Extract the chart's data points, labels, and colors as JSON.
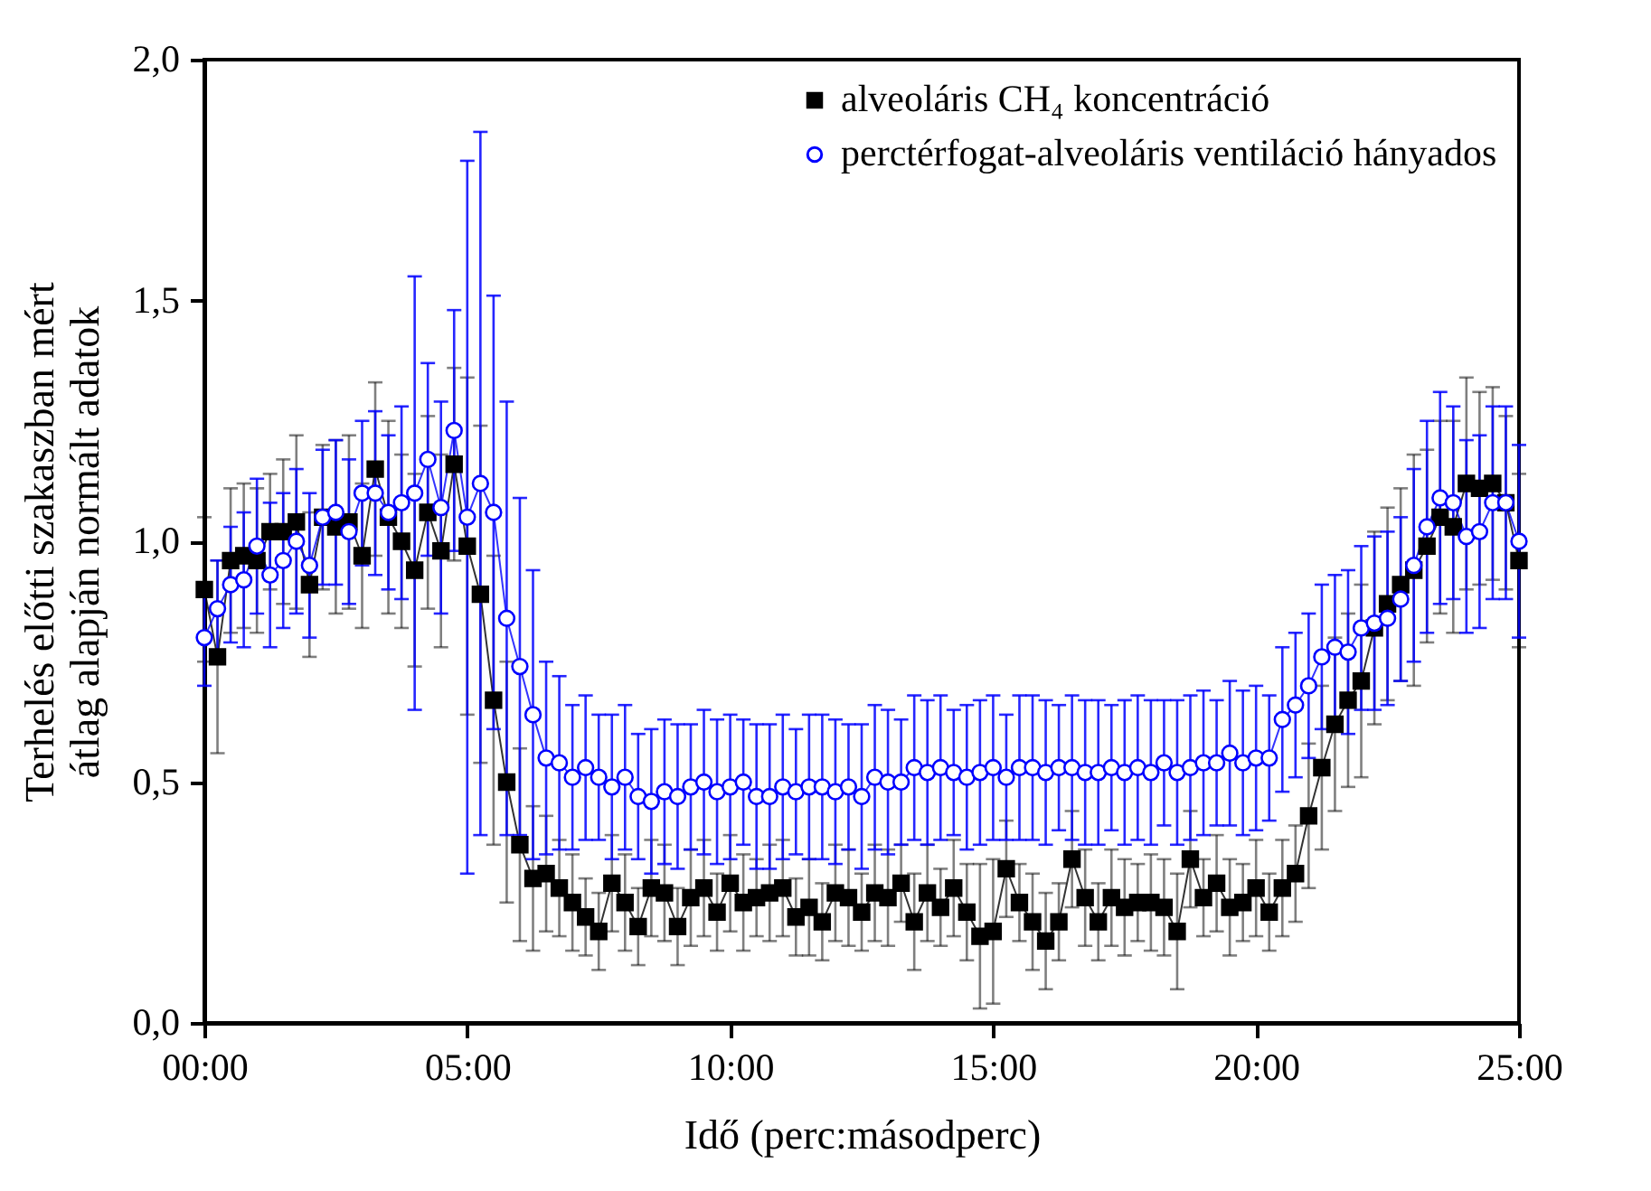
{
  "chart_data": {
    "type": "line",
    "xlabel": "Idő (perc:másodperc)",
    "ylabel": "Terhelés előtti szakaszban mért átlag alapján normált adatok",
    "xlim": [
      0,
      25
    ],
    "xticks": [
      {
        "value": 0,
        "label": "00:00"
      },
      {
        "value": 5,
        "label": "05:00"
      },
      {
        "value": 10,
        "label": "10:00"
      },
      {
        "value": 15,
        "label": "15:00"
      },
      {
        "value": 20,
        "label": "20:00"
      },
      {
        "value": 25,
        "label": "25:00"
      }
    ],
    "ylim": [
      0,
      2
    ],
    "yticks": [
      {
        "value": 0,
        "label": "0,0"
      },
      {
        "value": 0.5,
        "label": "0,5"
      },
      {
        "value": 1,
        "label": "1,0"
      },
      {
        "value": 1.5,
        "label": "1,5"
      },
      {
        "value": 2,
        "label": "2,0"
      }
    ],
    "x": [
      0,
      0.25,
      0.5,
      0.75,
      1,
      1.25,
      1.5,
      1.75,
      2,
      2.25,
      2.5,
      2.75,
      3,
      3.25,
      3.5,
      3.75,
      4,
      4.25,
      4.5,
      4.75,
      5,
      5.25,
      5.5,
      5.75,
      6,
      6.25,
      6.5,
      6.75,
      7,
      7.25,
      7.5,
      7.75,
      8,
      8.25,
      8.5,
      8.75,
      9,
      9.25,
      9.5,
      9.75,
      10,
      10.25,
      10.5,
      10.75,
      11,
      11.25,
      11.5,
      11.75,
      12,
      12.25,
      12.5,
      12.75,
      13,
      13.25,
      13.5,
      13.75,
      14,
      14.25,
      14.5,
      14.75,
      15,
      15.25,
      15.5,
      15.75,
      16,
      16.25,
      16.5,
      16.75,
      17,
      17.25,
      17.5,
      17.75,
      18,
      18.25,
      18.5,
      18.75,
      19,
      19.25,
      19.5,
      19.75,
      20,
      20.25,
      20.5,
      20.75,
      21,
      21.25,
      21.5,
      21.75,
      22,
      22.25,
      22.5,
      22.75,
      23,
      23.25,
      23.5,
      23.75,
      24,
      24.25,
      24.5,
      24.75,
      25
    ],
    "grid": false,
    "legend": "top right",
    "line_style": "solid",
    "series": [
      {
        "name": "alveoláris CH₄ koncentráció",
        "color": "#000000",
        "marker": "square",
        "values": [
          0.9,
          0.76,
          0.96,
          0.97,
          0.96,
          1.02,
          1.02,
          1.04,
          0.91,
          1.05,
          1.03,
          1.04,
          0.97,
          1.15,
          1.05,
          1.0,
          0.94,
          1.06,
          0.98,
          1.16,
          0.99,
          0.89,
          0.67,
          0.5,
          0.37,
          0.3,
          0.31,
          0.28,
          0.25,
          0.22,
          0.19,
          0.29,
          0.25,
          0.2,
          0.28,
          0.27,
          0.2,
          0.26,
          0.28,
          0.23,
          0.29,
          0.25,
          0.26,
          0.27,
          0.28,
          0.22,
          0.24,
          0.21,
          0.27,
          0.26,
          0.23,
          0.27,
          0.26,
          0.29,
          0.21,
          0.27,
          0.24,
          0.28,
          0.23,
          0.18,
          0.19,
          0.32,
          0.25,
          0.21,
          0.17,
          0.21,
          0.34,
          0.26,
          0.21,
          0.26,
          0.24,
          0.25,
          0.25,
          0.24,
          0.19,
          0.34,
          0.26,
          0.29,
          0.24,
          0.25,
          0.28,
          0.23,
          0.28,
          0.31,
          0.43,
          0.53,
          0.62,
          0.67,
          0.71,
          0.82,
          0.87,
          0.91,
          0.94,
          0.99,
          1.05,
          1.03,
          1.12,
          1.11,
          1.12,
          1.08,
          0.96
        ],
        "errors": [
          0.15,
          0.2,
          0.15,
          0.15,
          0.15,
          0.12,
          0.15,
          0.18,
          0.15,
          0.15,
          0.18,
          0.18,
          0.15,
          0.18,
          0.2,
          0.18,
          0.2,
          0.2,
          0.2,
          0.2,
          0.35,
          0.35,
          0.3,
          0.25,
          0.2,
          0.15,
          0.12,
          0.1,
          0.1,
          0.08,
          0.08,
          0.1,
          0.1,
          0.08,
          0.1,
          0.1,
          0.08,
          0.1,
          0.1,
          0.08,
          0.1,
          0.1,
          0.08,
          0.1,
          0.1,
          0.08,
          0.1,
          0.08,
          0.1,
          0.1,
          0.08,
          0.1,
          0.1,
          0.08,
          0.1,
          0.1,
          0.08,
          0.1,
          0.1,
          0.15,
          0.15,
          0.1,
          0.08,
          0.1,
          0.1,
          0.08,
          0.1,
          0.1,
          0.08,
          0.1,
          0.1,
          0.08,
          0.1,
          0.1,
          0.12,
          0.1,
          0.08,
          0.1,
          0.1,
          0.08,
          0.1,
          0.08,
          0.1,
          0.1,
          0.15,
          0.17,
          0.18,
          0.18,
          0.2,
          0.2,
          0.2,
          0.2,
          0.24,
          0.2,
          0.2,
          0.22,
          0.22,
          0.2,
          0.2,
          0.18,
          0.18
        ]
      },
      {
        "name": "perctérfogat-alveoláris ventiláció hányados",
        "color": "#0000ff",
        "marker": "circle",
        "values": [
          0.8,
          0.86,
          0.91,
          0.92,
          0.99,
          0.93,
          0.96,
          1.0,
          0.95,
          1.05,
          1.06,
          1.02,
          1.1,
          1.1,
          1.06,
          1.08,
          1.1,
          1.17,
          1.07,
          1.23,
          1.05,
          1.12,
          1.06,
          0.84,
          0.74,
          0.64,
          0.55,
          0.54,
          0.51,
          0.53,
          0.51,
          0.49,
          0.51,
          0.47,
          0.46,
          0.48,
          0.47,
          0.49,
          0.5,
          0.48,
          0.49,
          0.5,
          0.47,
          0.47,
          0.49,
          0.48,
          0.49,
          0.49,
          0.48,
          0.49,
          0.47,
          0.51,
          0.5,
          0.5,
          0.53,
          0.52,
          0.53,
          0.52,
          0.51,
          0.52,
          0.53,
          0.51,
          0.53,
          0.53,
          0.52,
          0.53,
          0.53,
          0.52,
          0.52,
          0.53,
          0.52,
          0.53,
          0.52,
          0.54,
          0.52,
          0.53,
          0.54,
          0.54,
          0.56,
          0.54,
          0.55,
          0.55,
          0.63,
          0.66,
          0.7,
          0.76,
          0.78,
          0.77,
          0.82,
          0.83,
          0.84,
          0.88,
          0.95,
          1.03,
          1.09,
          1.08,
          1.01,
          1.02,
          1.08,
          1.08,
          1.0
        ],
        "errors": [
          0.1,
          0.1,
          0.12,
          0.14,
          0.14,
          0.15,
          0.14,
          0.15,
          0.15,
          0.14,
          0.15,
          0.15,
          0.15,
          0.17,
          0.16,
          0.2,
          0.45,
          0.2,
          0.22,
          0.25,
          0.74,
          0.73,
          0.45,
          0.45,
          0.35,
          0.3,
          0.2,
          0.18,
          0.15,
          0.15,
          0.13,
          0.15,
          0.15,
          0.13,
          0.15,
          0.15,
          0.15,
          0.13,
          0.15,
          0.15,
          0.15,
          0.13,
          0.15,
          0.15,
          0.15,
          0.13,
          0.15,
          0.15,
          0.15,
          0.13,
          0.15,
          0.15,
          0.15,
          0.13,
          0.15,
          0.15,
          0.15,
          0.13,
          0.15,
          0.15,
          0.15,
          0.13,
          0.15,
          0.15,
          0.15,
          0.13,
          0.15,
          0.15,
          0.15,
          0.13,
          0.15,
          0.15,
          0.15,
          0.13,
          0.15,
          0.15,
          0.15,
          0.13,
          0.15,
          0.15,
          0.15,
          0.13,
          0.15,
          0.15,
          0.15,
          0.15,
          0.15,
          0.17,
          0.17,
          0.18,
          0.18,
          0.17,
          0.2,
          0.22,
          0.22,
          0.2,
          0.2,
          0.2,
          0.2,
          0.2,
          0.2
        ]
      }
    ]
  }
}
